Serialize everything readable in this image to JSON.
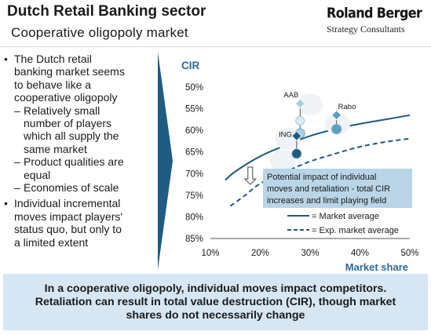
{
  "slide": {
    "title": "Dutch Retail Banking sector",
    "subtitle": "Cooperative  oligopoly market"
  },
  "logo": {
    "main": "Roland Berger",
    "sub": "Strategy Consultants"
  },
  "bullets": {
    "l1": "The Dutch retail",
    "l2": "banking market seems",
    "l3": "to behave like a",
    "l4": "cooperative oligopoly",
    "s1a": "Relatively small",
    "s1b": "number of players",
    "s1c": "which all supply the",
    "s1d": "same market",
    "s2a": "Product qualities are",
    "s2b": "equal",
    "s3a": "Economies of scale",
    "m1": "Individual incremental",
    "m2": "moves impact players'",
    "m3": "status quo, but only to",
    "m4": "a limited extent",
    "bullet_mark": "•",
    "dash_mark": "–"
  },
  "chart_data": {
    "type": "scatter",
    "ylabel": "CIR",
    "xlabel": "Market share",
    "x_ticks": [
      "10%",
      "20%",
      "30%",
      "40%",
      "50%"
    ],
    "y_ticks": [
      "50%",
      "55%",
      "60%",
      "65%",
      "70%",
      "75%",
      "80%",
      "85%"
    ],
    "xlim": [
      10,
      50
    ],
    "ylim_inverted": [
      50,
      85
    ],
    "grid": false,
    "series": [
      {
        "name": "= Market average",
        "style": "solid",
        "color": "#1f5b82",
        "x": [
          13,
          15,
          20,
          25,
          30,
          35,
          40,
          45,
          50
        ],
        "y": [
          71.5,
          69.5,
          66,
          63.5,
          61.3,
          59.7,
          58.5,
          57.5,
          56.5
        ]
      },
      {
        "name": "= Exp. market average",
        "style": "dashed",
        "color": "#1f5b82",
        "x": [
          14,
          17,
          20,
          25,
          30,
          35,
          40,
          45,
          50
        ],
        "y": [
          77.5,
          75,
          72.3,
          69.6,
          67.2,
          65.4,
          63.8,
          62.7,
          61.9
        ]
      }
    ],
    "banks": [
      {
        "label": "AAB",
        "x": 28.0,
        "y_before": 53.8,
        "y_middle": 57.8,
        "y_after": 60.7,
        "color": "#a9cfe2"
      },
      {
        "label": "Rabo",
        "x": 35.3,
        "y_before": 56.5,
        "y_after": 59.7,
        "color": "#5b9ec3"
      },
      {
        "label": "ING",
        "x": 27.3,
        "y_before": 61.3,
        "y_after": 65.4,
        "color": "#1f5b82"
      }
    ],
    "shift_arrow": {
      "x": 18.0,
      "y_from": 68.5,
      "y_to": 72.5
    },
    "annotation": {
      "line1": "Potential impact of individual",
      "line2": "moves and retaliation - total CIR",
      "line3": "increases and limit playing field"
    },
    "legend_position": "bottom-right"
  },
  "conclusion": "In a cooperative oligopoly, individual moves impact competitors. Retaliation can result in total value destruction (CIR), though market shares do not necessarily change",
  "colors": {
    "dark_blue": "#1f5b82",
    "mid_blue": "#5b9ec3",
    "light_blue": "#a9cfe2",
    "annotation_fill": "#b9d5e6",
    "conclusion_fill": "#d6e6f2",
    "accent_label": "#2a6a99"
  }
}
